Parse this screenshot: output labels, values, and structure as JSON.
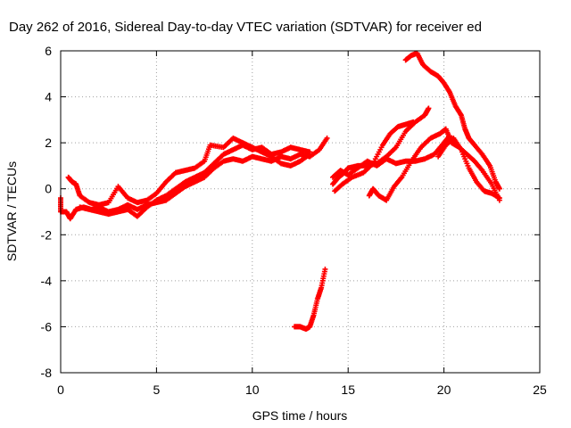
{
  "chart_data": {
    "type": "scatter",
    "title": "Day 262 of 2016, Sidereal Day-to-day VTEC variation (SDTVAR) for receiver ed",
    "xlabel": "GPS time / hours",
    "ylabel": "SDTVAR / TECUs",
    "xlim": [
      0,
      25
    ],
    "ylim": [
      -8,
      6
    ],
    "x_ticks": [
      0,
      5,
      10,
      15,
      20,
      25
    ],
    "y_ticks": [
      -8,
      -6,
      -4,
      -2,
      0,
      2,
      4,
      6
    ],
    "x_tick_labels": [
      "0",
      "5",
      "10",
      "15",
      "20",
      "25"
    ],
    "y_tick_labels": [
      "-8",
      "-6",
      "-4",
      "-2",
      "0",
      "2",
      "4",
      "6"
    ],
    "grid": true,
    "marker": "plus",
    "color": "#ff0000",
    "series": [
      {
        "points": [
          [
            0.0,
            -0.4
          ],
          [
            0.0,
            -1.0
          ],
          [
            0.3,
            -1.0
          ],
          [
            0.5,
            -1.3
          ],
          [
            0.8,
            -0.9
          ],
          [
            1.2,
            -0.8
          ],
          [
            1.6,
            -0.9
          ],
          [
            2.0,
            -0.8
          ],
          [
            2.5,
            -1.0
          ],
          [
            3.0,
            -0.9
          ],
          [
            3.5,
            -0.7
          ],
          [
            4.0,
            -0.9
          ],
          [
            4.5,
            -0.7
          ],
          [
            5.0,
            -0.6
          ],
          [
            5.5,
            -0.5
          ],
          [
            6.0,
            -0.2
          ],
          [
            6.5,
            0.1
          ],
          [
            7.0,
            0.3
          ],
          [
            7.5,
            0.5
          ],
          [
            8.0,
            0.9
          ],
          [
            8.5,
            1.2
          ],
          [
            9.0,
            1.3
          ],
          [
            9.5,
            1.2
          ],
          [
            10.0,
            1.4
          ],
          [
            10.5,
            1.3
          ],
          [
            11.0,
            1.2
          ],
          [
            11.5,
            1.4
          ],
          [
            12.0,
            1.3
          ],
          [
            12.5,
            1.5
          ],
          [
            13.0,
            1.4
          ],
          [
            13.5,
            1.7
          ],
          [
            13.9,
            2.2
          ]
        ]
      },
      {
        "points": [
          [
            0.4,
            0.5
          ],
          [
            0.6,
            0.3
          ],
          [
            0.8,
            0.2
          ],
          [
            1.0,
            -0.3
          ],
          [
            1.5,
            -0.6
          ],
          [
            2.0,
            -0.7
          ],
          [
            2.5,
            -0.6
          ],
          [
            3.0,
            0.1
          ],
          [
            3.5,
            -0.4
          ],
          [
            4.0,
            -0.6
          ],
          [
            4.5,
            -0.5
          ],
          [
            5.0,
            -0.2
          ],
          [
            5.5,
            0.3
          ],
          [
            6.0,
            0.7
          ],
          [
            6.5,
            0.8
          ],
          [
            7.0,
            0.9
          ],
          [
            7.5,
            1.2
          ],
          [
            7.8,
            1.9
          ],
          [
            8.5,
            1.8
          ],
          [
            9.0,
            2.2
          ],
          [
            9.5,
            2.0
          ],
          [
            10.0,
            1.8
          ],
          [
            10.5,
            1.6
          ],
          [
            11.0,
            1.4
          ],
          [
            11.5,
            1.1
          ],
          [
            12.0,
            1.0
          ],
          [
            12.5,
            1.2
          ],
          [
            13.0,
            1.5
          ]
        ]
      },
      {
        "points": [
          [
            1.0,
            -0.8
          ],
          [
            1.5,
            -0.9
          ],
          [
            2.0,
            -1.0
          ],
          [
            2.5,
            -1.1
          ],
          [
            3.0,
            -1.0
          ],
          [
            3.5,
            -0.9
          ],
          [
            4.0,
            -1.2
          ],
          [
            4.5,
            -0.8
          ],
          [
            5.0,
            -0.5
          ],
          [
            5.5,
            -0.3
          ],
          [
            6.0,
            0.0
          ],
          [
            6.5,
            0.3
          ],
          [
            7.0,
            0.5
          ],
          [
            7.5,
            0.7
          ],
          [
            8.0,
            1.1
          ],
          [
            8.5,
            1.5
          ],
          [
            9.0,
            1.7
          ],
          [
            9.5,
            1.9
          ],
          [
            10.0,
            1.7
          ],
          [
            10.5,
            1.8
          ],
          [
            11.0,
            1.5
          ],
          [
            11.5,
            1.6
          ],
          [
            12.0,
            1.8
          ],
          [
            12.5,
            1.7
          ],
          [
            13.0,
            1.6
          ]
        ]
      },
      {
        "points": [
          [
            12.2,
            -6.0
          ],
          [
            12.5,
            -6.0
          ],
          [
            12.8,
            -6.1
          ],
          [
            13.0,
            -6.0
          ],
          [
            13.2,
            -5.5
          ],
          [
            13.4,
            -4.8
          ],
          [
            13.6,
            -4.3
          ],
          [
            13.8,
            -3.5
          ]
        ]
      },
      {
        "points": [
          [
            14.2,
            0.2
          ],
          [
            14.5,
            0.5
          ],
          [
            14.8,
            0.7
          ],
          [
            15.0,
            0.9
          ],
          [
            15.5,
            1.0
          ],
          [
            16.0,
            1.0
          ],
          [
            16.5,
            1.1
          ],
          [
            17.0,
            1.4
          ],
          [
            17.5,
            1.8
          ],
          [
            18.0,
            2.5
          ],
          [
            18.5,
            2.9
          ],
          [
            19.0,
            3.2
          ],
          [
            19.2,
            3.5
          ]
        ]
      },
      {
        "points": [
          [
            14.2,
            0.5
          ],
          [
            14.6,
            0.8
          ],
          [
            15.0,
            0.6
          ],
          [
            15.5,
            0.9
          ],
          [
            16.0,
            1.2
          ],
          [
            16.5,
            1.0
          ],
          [
            17.0,
            1.3
          ],
          [
            17.5,
            1.1
          ],
          [
            18.0,
            1.2
          ],
          [
            18.5,
            1.2
          ],
          [
            19.0,
            1.3
          ],
          [
            19.5,
            1.5
          ],
          [
            20.0,
            2.0
          ],
          [
            20.3,
            2.3
          ]
        ]
      },
      {
        "points": [
          [
            14.3,
            -0.1
          ],
          [
            14.7,
            0.2
          ],
          [
            15.2,
            0.5
          ],
          [
            15.8,
            0.7
          ],
          [
            16.3,
            1.1
          ],
          [
            16.8,
            1.9
          ],
          [
            17.2,
            2.4
          ],
          [
            17.6,
            2.7
          ],
          [
            18.0,
            2.8
          ],
          [
            18.4,
            2.9
          ]
        ]
      },
      {
        "points": [
          [
            16.1,
            -0.3
          ],
          [
            16.3,
            0.0
          ],
          [
            16.6,
            -0.3
          ],
          [
            17.0,
            -0.5
          ],
          [
            17.4,
            0.1
          ],
          [
            17.8,
            0.5
          ],
          [
            18.3,
            1.2
          ],
          [
            18.8,
            1.8
          ],
          [
            19.3,
            2.2
          ],
          [
            19.8,
            2.4
          ],
          [
            20.1,
            2.6
          ],
          [
            20.4,
            2.0
          ],
          [
            20.8,
            1.8
          ],
          [
            21.2,
            1.5
          ],
          [
            21.6,
            1.2
          ],
          [
            22.0,
            0.8
          ],
          [
            22.5,
            0.2
          ],
          [
            22.9,
            -0.5
          ]
        ]
      },
      {
        "points": [
          [
            18.0,
            5.6
          ],
          [
            18.3,
            5.8
          ],
          [
            18.6,
            5.9
          ],
          [
            18.9,
            5.4
          ],
          [
            19.3,
            5.1
          ],
          [
            19.7,
            4.9
          ],
          [
            20.0,
            4.6
          ],
          [
            20.3,
            4.2
          ],
          [
            20.6,
            3.6
          ],
          [
            20.9,
            3.2
          ],
          [
            21.1,
            2.6
          ],
          [
            21.3,
            2.2
          ],
          [
            21.6,
            1.9
          ],
          [
            22.0,
            1.5
          ],
          [
            22.4,
            1.0
          ],
          [
            22.7,
            0.3
          ],
          [
            22.9,
            0.0
          ]
        ]
      },
      {
        "points": [
          [
            19.7,
            1.4
          ],
          [
            20.1,
            1.9
          ],
          [
            20.5,
            2.2
          ],
          [
            20.9,
            1.7
          ],
          [
            21.3,
            0.9
          ],
          [
            21.7,
            0.3
          ],
          [
            22.1,
            -0.1
          ],
          [
            22.5,
            -0.2
          ],
          [
            22.9,
            -0.4
          ]
        ]
      }
    ]
  }
}
